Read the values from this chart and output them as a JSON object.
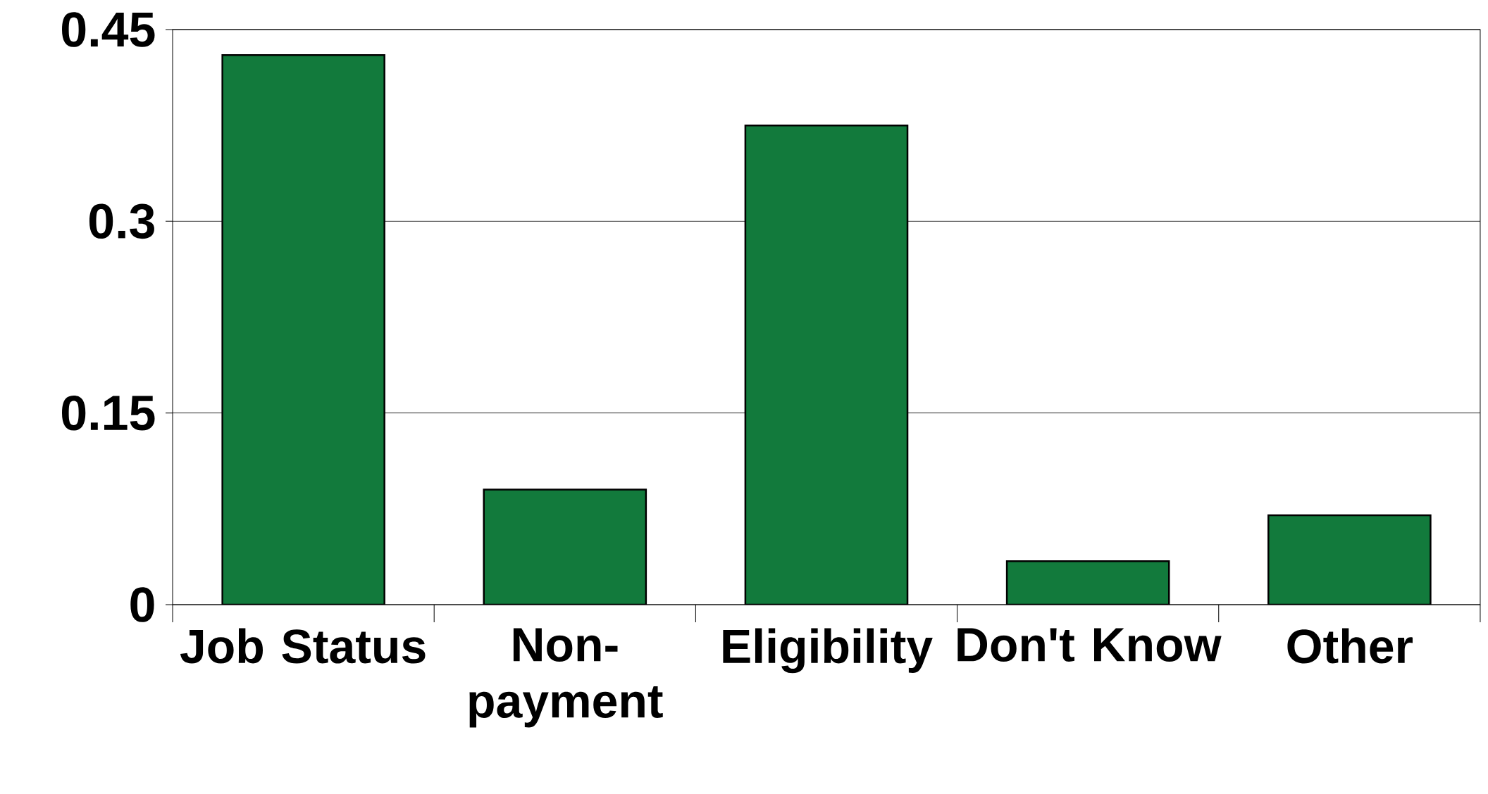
{
  "chart_data": {
    "type": "bar",
    "categories": [
      "Job Status",
      "Non-payment",
      "Eligibility",
      "Don't Know",
      "Other"
    ],
    "values": [
      0.43,
      0.09,
      0.375,
      0.034,
      0.07
    ],
    "color": "#127a3c",
    "ylim": [
      0,
      0.45
    ],
    "yticks": [
      0,
      0.15,
      0.3,
      0.45
    ],
    "grid": "y"
  }
}
